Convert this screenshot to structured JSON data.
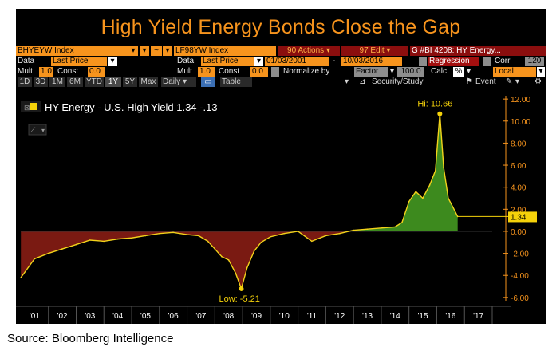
{
  "title": "High Yield Energy Bonds Close the Gap",
  "toolbar1": {
    "ticker1": "BHYEYW Index",
    "ticker2": "LF98YW Index",
    "actions": "90 Actions",
    "edit": "97 Edit",
    "graph": "G #BI 4208: HY Energy..."
  },
  "toolbar2": {
    "data_label": "Data",
    "data_value": "Last Price",
    "data2_label": "Data",
    "data2_value": "Last Price",
    "date_from": "01/03/2001",
    "date_sep": "-",
    "date_to": "10/03/2016",
    "regression_label": "Regression",
    "corr_label": "Corr",
    "corr_value": "120"
  },
  "toolbar3": {
    "mult_label": "Mult",
    "mult_value": "1.0",
    "const_label": "Const",
    "const_value": "0.0",
    "mult2_label": "Mult",
    "mult2_value": "1.0",
    "const2_label": "Const",
    "const2_value": "0.0",
    "normalize_label": "Normalize by",
    "factor_value": "Factor",
    "factor_num": "100.0",
    "calc_label": "Calc",
    "calc_value": "%",
    "local_value": "Local"
  },
  "toolbar4": {
    "periods": [
      "1D",
      "3D",
      "1M",
      "6M",
      "YTD",
      "1Y",
      "5Y",
      "Max"
    ],
    "selected_period": "1Y",
    "freq": "Daily",
    "table": "Table",
    "security": "Security/Study",
    "event": "Event"
  },
  "legend": "HY Energy - U.S. High Yield 1.34 -.13",
  "annotations": {
    "hi": "Hi: 10.66",
    "low": "Low: -5.21",
    "last": "1.34"
  },
  "source": "Source: Bloomberg Intelligence",
  "colors": {
    "orange": "#f7941d",
    "positive_fill": "#3d8a1e",
    "negative_fill": "#7a1a12",
    "line": "#f2d21a",
    "last_badge": "#f5d20a"
  },
  "chart_data": {
    "type": "area",
    "series": [
      {
        "name": "HY Energy - U.S. High Yield",
        "x": [
          "2001-01-03",
          "2001-07-01",
          "2002-01-01",
          "2002-07-01",
          "2003-01-01",
          "2003-07-01",
          "2004-01-01",
          "2004-07-01",
          "2005-01-01",
          "2005-07-01",
          "2006-01-01",
          "2006-07-01",
          "2007-01-01",
          "2007-06-01",
          "2007-10-01",
          "2008-01-01",
          "2008-04-01",
          "2008-07-01",
          "2008-10-01",
          "2008-12-15",
          "2009-03-01",
          "2009-06-01",
          "2009-09-01",
          "2010-01-01",
          "2010-07-01",
          "2011-01-01",
          "2011-07-01",
          "2012-01-01",
          "2012-07-01",
          "2013-01-01",
          "2013-07-01",
          "2014-01-01",
          "2014-07-01",
          "2014-10-01",
          "2015-01-01",
          "2015-04-01",
          "2015-07-01",
          "2015-10-01",
          "2015-12-15",
          "2016-02-11",
          "2016-04-01",
          "2016-06-01",
          "2016-08-01",
          "2016-10-03"
        ],
        "values": [
          -4.2,
          -2.5,
          -2.0,
          -1.6,
          -1.2,
          -0.8,
          -0.9,
          -0.7,
          -0.6,
          -0.4,
          -0.2,
          -0.1,
          -0.3,
          -0.4,
          -0.9,
          -1.6,
          -2.3,
          -2.6,
          -3.8,
          -5.21,
          -3.3,
          -1.8,
          -1.0,
          -0.5,
          -0.2,
          0.0,
          -0.9,
          -0.4,
          -0.2,
          0.1,
          0.2,
          0.3,
          0.4,
          0.8,
          2.7,
          3.6,
          3.0,
          4.2,
          5.5,
          10.66,
          5.8,
          3.0,
          2.2,
          1.34
        ]
      }
    ],
    "xlabel": "",
    "ylabel": "",
    "x_tick_labels": [
      "'01",
      "'02",
      "'03",
      "'04",
      "'05",
      "'06",
      "'07",
      "'08",
      "'09",
      "'10",
      "'11",
      "'12",
      "'13",
      "'14",
      "'15",
      "'16",
      "'17"
    ],
    "y_tick_labels": [
      "12.00",
      "10.00",
      "8.00",
      "6.00",
      "4.00",
      "2.00",
      "0.00",
      "-2.00",
      "-4.00",
      "-6.00"
    ],
    "ylim": [
      -6.3,
      12.3
    ],
    "xlim": [
      "2001-01-01",
      "2018-01-01"
    ],
    "grid": false,
    "annotations": [
      {
        "text": "Hi: 10.66",
        "x": "2016-02-11",
        "y": 10.66
      },
      {
        "text": "Low: -5.21",
        "x": "2008-12-15",
        "y": -5.21
      },
      {
        "text": "1.34",
        "x": "2016-10-03",
        "y": 1.34
      }
    ]
  }
}
